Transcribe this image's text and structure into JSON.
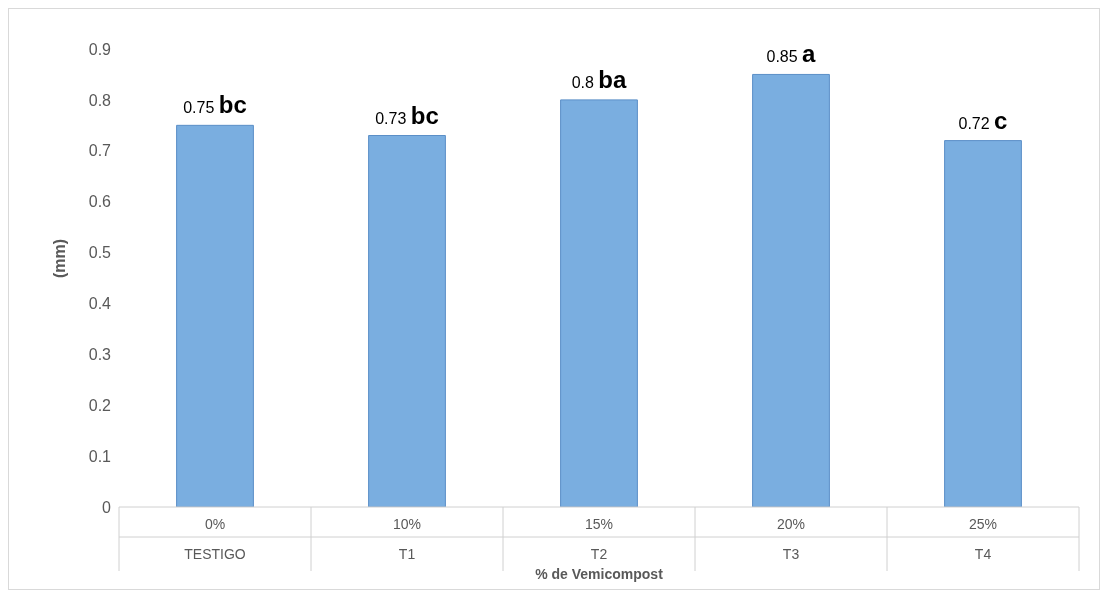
{
  "chart_data": {
    "type": "bar",
    "xlabel": "% de Vemicompost",
    "ylabel": "(mm)",
    "categories": [
      "0%\nTESTIGO",
      "10%\nT1",
      "15%\nT2",
      "20%\nT3",
      "25%\nT4"
    ],
    "values": [
      0.75,
      0.73,
      0.8,
      0.85,
      0.72
    ],
    "color": "#7aaee0",
    "value_labels": [
      "0.75 bc",
      "0.73 bc",
      "0.8 ba",
      "0.85 a",
      "0.72 c"
    ],
    "ylim": [
      0,
      0.9
    ],
    "yticks": [
      0,
      0.1,
      0.2,
      0.3,
      0.4,
      0.5,
      0.6,
      0.7,
      0.8,
      0.9
    ],
    "grid": false,
    "legend": false
  }
}
